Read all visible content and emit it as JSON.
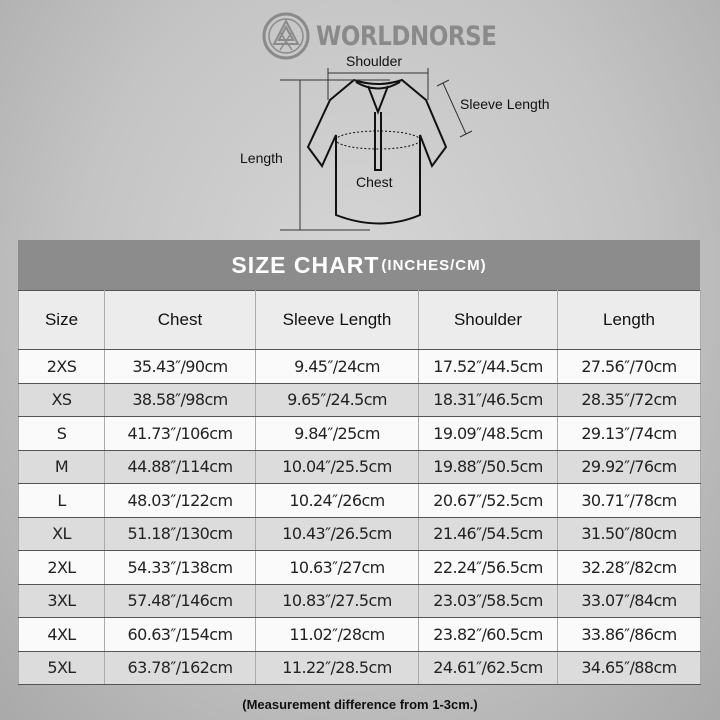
{
  "brand": {
    "name": "WORLDNORSE",
    "logo_icon": "valknut-emblem"
  },
  "diagram": {
    "labels": {
      "shoulder": "Shoulder",
      "sleeve_length": "Sleeve Length",
      "length": "Length",
      "chest": "Chest"
    }
  },
  "chart": {
    "title": "SIZE CHART",
    "title_units": "(INCHES/CM)",
    "columns": [
      "Size",
      "Chest",
      "Sleeve Length",
      "Shoulder",
      "Length"
    ],
    "rows": [
      [
        "2XS",
        "35.43″/90cm",
        "9.45″/24cm",
        "17.52″/44.5cm",
        "27.56″/70cm"
      ],
      [
        "XS",
        "38.58″/98cm",
        "9.65″/24.5cm",
        "18.31″/46.5cm",
        "28.35″/72cm"
      ],
      [
        "S",
        "41.73″/106cm",
        "9.84″/25cm",
        "19.09″/48.5cm",
        "29.13″/74cm"
      ],
      [
        "M",
        "44.88″/114cm",
        "10.04″/25.5cm",
        "19.88″/50.5cm",
        "29.92″/76cm"
      ],
      [
        "L",
        "48.03″/122cm",
        "10.24″/26cm",
        "20.67″/52.5cm",
        "30.71″/78cm"
      ],
      [
        "XL",
        "51.18″/130cm",
        "10.43″/26.5cm",
        "21.46″/54.5cm",
        "31.50″/80cm"
      ],
      [
        "2XL",
        "54.33″/138cm",
        "10.63″/27cm",
        "22.24″/56.5cm",
        "32.28″/82cm"
      ],
      [
        "3XL",
        "57.48″/146cm",
        "10.83″/27.5cm",
        "23.03″/58.5cm",
        "33.07″/84cm"
      ],
      [
        "4XL",
        "60.63″/154cm",
        "11.02″/28cm",
        "23.82″/60.5cm",
        "33.86″/86cm"
      ],
      [
        "5XL",
        "63.78″/162cm",
        "11.22″/28.5cm",
        "24.61″/62.5cm",
        "34.65″/88cm"
      ]
    ],
    "footnote": "(Measurement difference from 1-3cm.)"
  },
  "colors": {
    "title_band": "#8c8c8c",
    "header_bg": "#ececec",
    "row_alt": "#dcdcdc"
  }
}
